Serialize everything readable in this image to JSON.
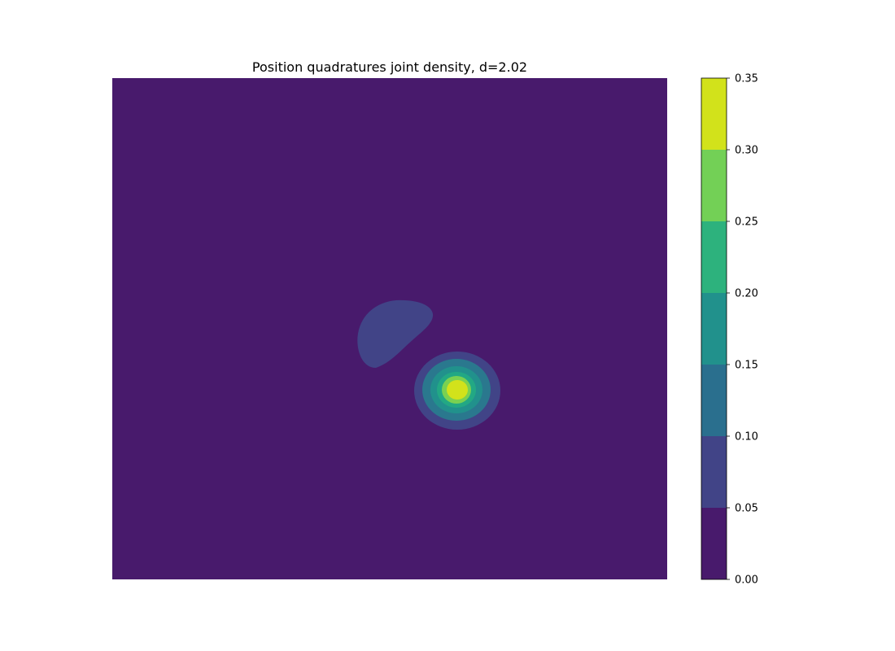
{
  "chart_data": {
    "type": "heatmap",
    "subtype": "filled-contour",
    "title": "Position quadratures joint density, d=2.02",
    "xlabel": "",
    "ylabel": "",
    "axes_visible": false,
    "grid": false,
    "colormap": "viridis",
    "levels": [
      0.0,
      0.05,
      0.1,
      0.15,
      0.2,
      0.25,
      0.3,
      0.35
    ],
    "level_colors": [
      "#481a6c",
      "#414487",
      "#2a788e",
      "#22a884",
      "#2fb47c",
      "#7ad151",
      "#d2e21b"
    ],
    "colorbar": {
      "location": "right",
      "ticks": [
        0.0,
        0.05,
        0.1,
        0.15,
        0.2,
        0.25,
        0.3,
        0.35
      ],
      "tick_labels": [
        "0.00",
        "0.05",
        "0.10",
        "0.15",
        "0.20",
        "0.25",
        "0.30",
        "0.35"
      ],
      "band_colors": [
        "#481a6c",
        "#414487",
        "#2a6f8e",
        "#21918c",
        "#2db27d",
        "#73d056",
        "#d2e21b"
      ]
    },
    "features": [
      {
        "name": "main-peak",
        "peak_level_range": [
          0.3,
          0.35
        ],
        "shape": "nearly circular, concentric contour rings"
      },
      {
        "name": "secondary-lobe",
        "level_range": [
          0.05,
          0.1
        ],
        "shape": "tilted half-disc lobe"
      }
    ]
  }
}
